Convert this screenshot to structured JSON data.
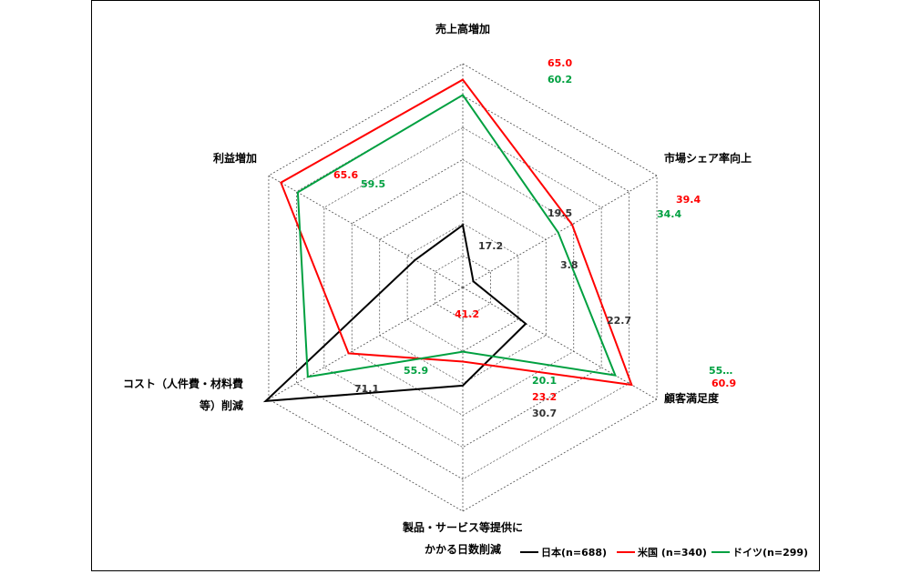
{
  "chart_data": {
    "type": "radar",
    "axes": [
      {
        "label": "売上高増加",
        "lines": [
          "売上高増加"
        ]
      },
      {
        "label": "市場シェア率向上",
        "lines": [
          "市場シェア率向上"
        ]
      },
      {
        "label": "顧客満足度",
        "lines": [
          "顧客満足度"
        ]
      },
      {
        "label": "製品・サービス等提供にかかる日数削減",
        "lines": [
          "製品・サービス等提供に",
          "かかる日数削減"
        ]
      },
      {
        "label": "コスト（人件費・材料費等）削減",
        "lines": [
          "コスト（人件費・材料費",
          "等）削減"
        ]
      },
      {
        "label": "利益増加",
        "lines": [
          "利益増加"
        ]
      }
    ],
    "rlim": [
      0,
      70
    ],
    "rings": 7,
    "series": [
      {
        "name": "日本(n=688)",
        "color": "#000000",
        "values": [
          19.5,
          3.8,
          22.7,
          30.7,
          71.1,
          17.2
        ],
        "labels": [
          "19.5",
          "3.8",
          "22.7",
          "30.7",
          "71.1",
          "17.2"
        ]
      },
      {
        "name": "米国 (n=340)",
        "color": "#ff0000",
        "values": [
          65.0,
          39.4,
          60.9,
          23.2,
          41.2,
          65.6
        ],
        "labels": [
          "65.0",
          "39.4",
          "60.9",
          "23.2",
          "41.2",
          "65.6"
        ]
      },
      {
        "name": "ドイツ(n=299)",
        "color": "#00a040",
        "values": [
          60.2,
          34.4,
          55.0,
          20.1,
          55.9,
          59.5
        ],
        "labels": [
          "60.2",
          "34.4",
          "55…",
          "20.1",
          "55.9",
          "59.5"
        ]
      }
    ],
    "legend_position": "bottom-right"
  }
}
